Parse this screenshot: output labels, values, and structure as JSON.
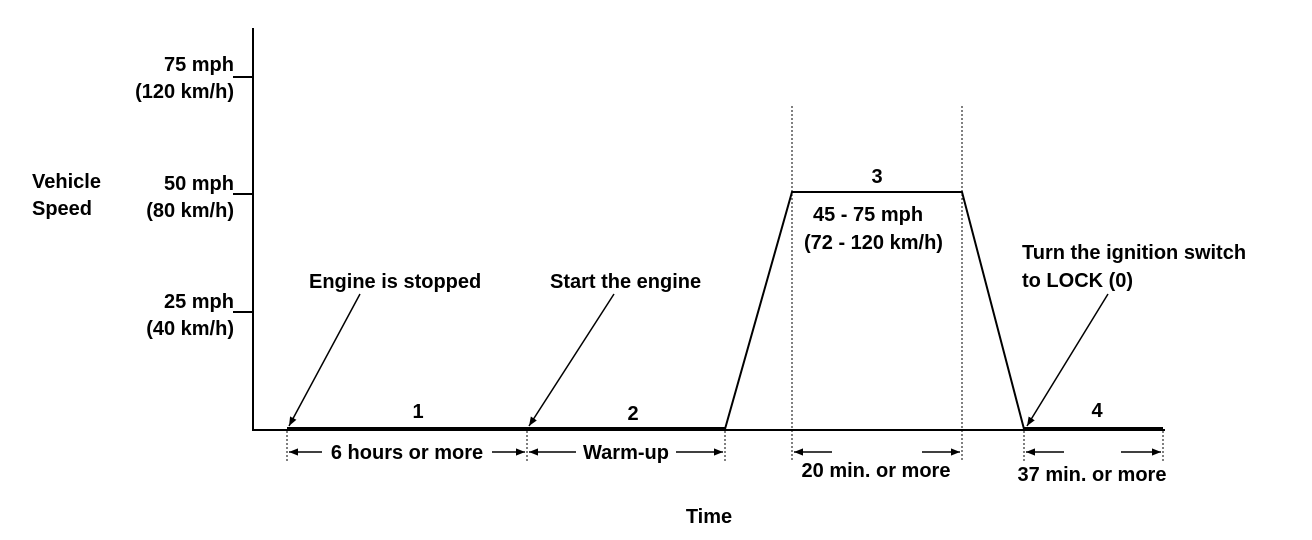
{
  "y_axis": {
    "title_line1": "Vehicle",
    "title_line2": "Speed",
    "ticks": [
      {
        "mph": "75 mph",
        "kmh": "(120 km/h)"
      },
      {
        "mph": "50 mph",
        "kmh": "(80 km/h)"
      },
      {
        "mph": "25 mph",
        "kmh": "(40 km/h)"
      }
    ]
  },
  "x_axis": {
    "title": "Time"
  },
  "phases": [
    {
      "number": "1",
      "duration": "6 hours or more"
    },
    {
      "number": "2",
      "duration": "Warm-up"
    },
    {
      "number": "3",
      "duration": "20 min. or more",
      "speed_line1": "45 - 75 mph",
      "speed_line2": "(72 - 120 km/h)"
    },
    {
      "number": "4",
      "duration": "37 min. or more"
    }
  ],
  "annotations": {
    "engine_stopped": "Engine is stopped",
    "start_engine": "Start the engine",
    "ignition_line1": "Turn the ignition switch",
    "ignition_line2": "to LOCK (0)"
  }
}
